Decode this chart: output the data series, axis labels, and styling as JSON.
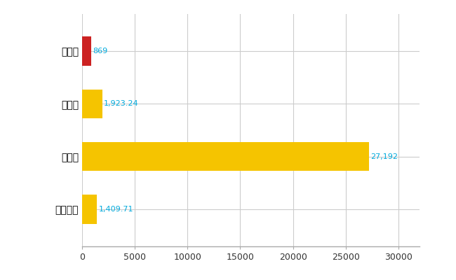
{
  "categories": [
    "志免町",
    "県平均",
    "県最大",
    "全国平均"
  ],
  "values": [
    869,
    1923.24,
    27192,
    1409.71
  ],
  "bar_colors": [
    "#cc2222",
    "#f5c400",
    "#f5c400",
    "#f5c400"
  ],
  "bar_labels": [
    "869",
    "1,923.24",
    "27,192",
    "1,409.71"
  ],
  "xlim": [
    0,
    32000
  ],
  "xticks": [
    0,
    5000,
    10000,
    15000,
    20000,
    25000,
    30000
  ],
  "xtick_labels": [
    "0",
    "5000",
    "10000",
    "15000",
    "20000",
    "25000",
    "30000"
  ],
  "background_color": "#ffffff",
  "grid_color": "#cccccc",
  "label_color": "#00aadd",
  "bar_height": 0.55,
  "figsize": [
    6.5,
    4.0
  ],
  "dpi": 100
}
